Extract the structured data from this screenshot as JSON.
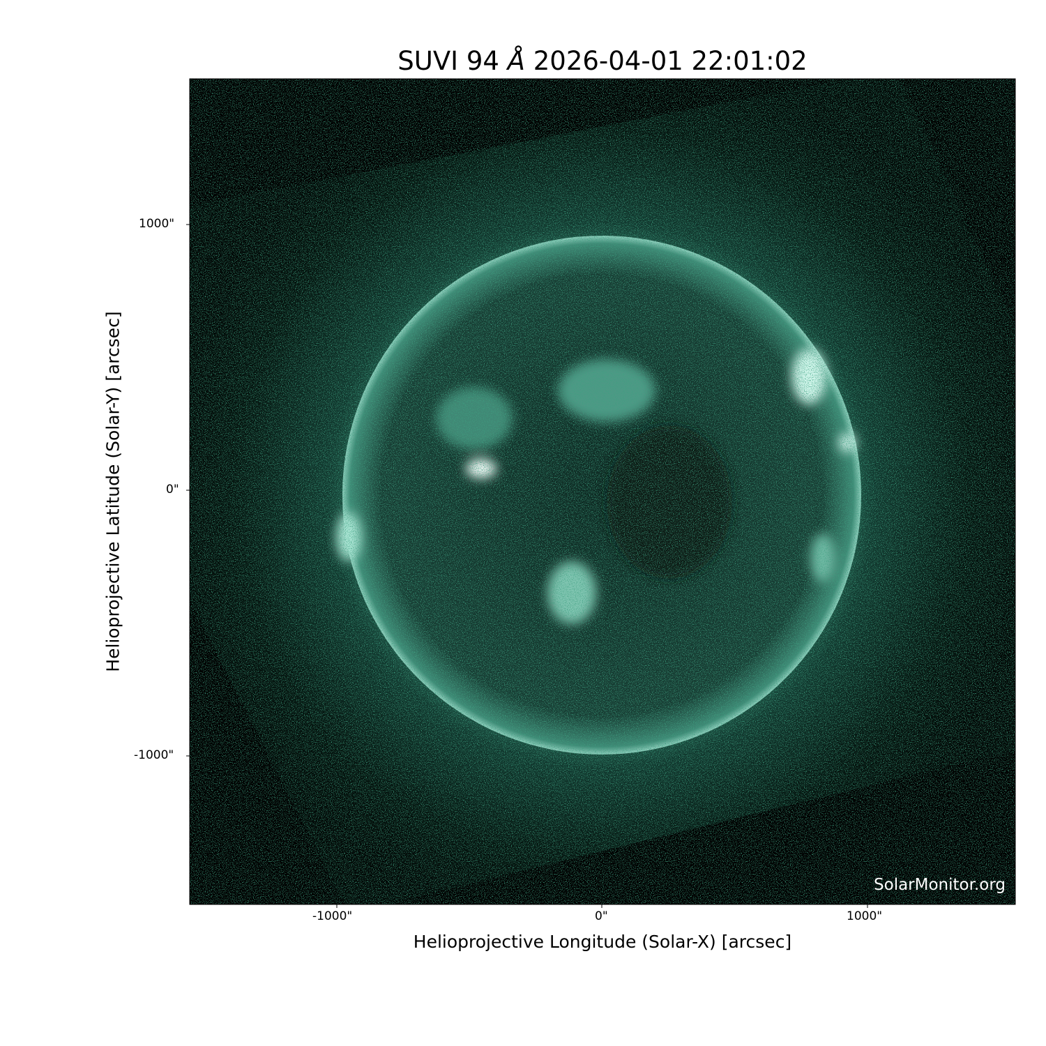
{
  "title": {
    "instrument": "SUVI 94",
    "unit_symbol": "Å",
    "datetime": "2026-04-01 22:01:02"
  },
  "x_axis": {
    "label": "Helioprojective Longitude (Solar-X) [arcsec]",
    "ticks": [
      "-1000\"",
      "0\"",
      "1000\""
    ]
  },
  "y_axis": {
    "label": "Helioprojective Latitude (Solar-Y) [arcsec]",
    "ticks": [
      "1000\"",
      "0\"",
      "-1000\""
    ]
  },
  "watermark": "SolarMonitor.org",
  "colors": {
    "colormap_mid": "#2f7a66",
    "colormap_high": "#e8fff6",
    "background": "#000000"
  }
}
